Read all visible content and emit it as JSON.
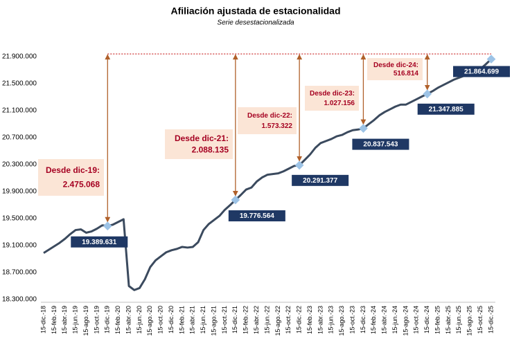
{
  "chart_data": {
    "type": "line",
    "title": "Afiliación ajustada de estacionalidad",
    "subtitle": "Serie desestacionalizada",
    "categories": [
      "15-dic.-18",
      null,
      "15-feb.-19",
      null,
      "15-abr.-19",
      null,
      "15-jun.-19",
      null,
      "15-ago.-19",
      null,
      "15-oct.-19",
      null,
      "15-dic.-19",
      null,
      "15-feb.-20",
      null,
      "15-abr.-20",
      null,
      "15-jun.-20",
      null,
      "15-ago.-20",
      null,
      "15-oct.-20",
      null,
      "15-dic.-20",
      null,
      "15-feb.-21",
      null,
      "15-abr.-21",
      null,
      "15-jun.-21",
      null,
      "15-ago.-21",
      null,
      "15-oct.-21",
      null,
      "15-dic.-21",
      null,
      "15-feb.-22",
      null,
      "15-abr.-22",
      null,
      "15-jun.-22",
      null,
      "15-ago.-22",
      null,
      "15-oct.-22",
      null,
      "15-dic.-22",
      null,
      "15-feb.-23",
      null,
      "15-abr.-23",
      null,
      "15-jun.-23",
      null,
      "15-ago.-23",
      null,
      "15-oct.-23",
      null,
      "15-dic.-23",
      null,
      "15-feb.-24",
      null,
      "15-abr.-24",
      null,
      "15-jun.-24",
      null,
      "15-ago.-24",
      null,
      "15-oct.-24",
      null,
      "15-dic.-24",
      null,
      "15-feb.-25",
      null,
      "15-abr.-25",
      null,
      "15-jun.-25",
      null,
      "15-ago.-25",
      null,
      "15-oct.-25",
      null,
      "15-dic.-25"
    ],
    "values": [
      18990000,
      19040000,
      19090000,
      19140000,
      19200000,
      19270000,
      19330000,
      19340000,
      19290000,
      19310000,
      19350000,
      19400000,
      19389631,
      19410000,
      19450000,
      19490000,
      18500000,
      18440000,
      18470000,
      18600000,
      18780000,
      18880000,
      18940000,
      19000000,
      19030000,
      19050000,
      19080000,
      19070000,
      19080000,
      19150000,
      19330000,
      19420000,
      19480000,
      19540000,
      19630000,
      19700000,
      19776564,
      19850000,
      19930000,
      19960000,
      20050000,
      20110000,
      20150000,
      20160000,
      20170000,
      20200000,
      20240000,
      20280000,
      20291377,
      20370000,
      20450000,
      20550000,
      20620000,
      20650000,
      20680000,
      20720000,
      20740000,
      20780000,
      20810000,
      20820000,
      20837543,
      20900000,
      20960000,
      21030000,
      21080000,
      21120000,
      21160000,
      21190000,
      21190000,
      21230000,
      21270000,
      21310000,
      21347885,
      21390000,
      21440000,
      21480000,
      21520000,
      21560000,
      21590000,
      21620000,
      21650000,
      21670000,
      21720000,
      21790000,
      21864699
    ],
    "value_labels": [
      null,
      null,
      null,
      null,
      null,
      null,
      null,
      null,
      null,
      null,
      null,
      null,
      "19.389.631",
      null,
      null,
      null,
      null,
      null,
      null,
      null,
      null,
      null,
      null,
      null,
      null,
      null,
      null,
      null,
      null,
      null,
      null,
      null,
      null,
      null,
      null,
      null,
      "19.776.564",
      null,
      null,
      null,
      null,
      null,
      null,
      null,
      null,
      null,
      null,
      null,
      "20.291.377",
      null,
      null,
      null,
      null,
      null,
      null,
      null,
      null,
      null,
      null,
      null,
      "20.837.543",
      null,
      null,
      null,
      null,
      null,
      null,
      null,
      null,
      null,
      null,
      null,
      "21.347.885",
      null,
      null,
      null,
      null,
      null,
      null,
      null,
      null,
      null,
      null,
      null,
      "21.864.699"
    ],
    "color": "#3b4a5e",
    "marker_color": "#9dc3e6",
    "label_color": "#1f3864",
    "arrow_color": "#b0602a",
    "ylim": [
      18300000,
      21900000
    ],
    "yticks": [
      {
        "value": 18300000,
        "label": "18.300.000"
      },
      {
        "value": 18700000,
        "label": "18.700.000"
      },
      {
        "value": 19100000,
        "label": "19.100.000"
      },
      {
        "value": 19500000,
        "label": "19.500.000"
      },
      {
        "value": 19900000,
        "label": "19.900.000"
      },
      {
        "value": 20300000,
        "label": "20.300.000"
      },
      {
        "value": 20700000,
        "label": "20.700.000"
      },
      {
        "value": 21100000,
        "label": "21.100.000"
      },
      {
        "value": 21500000,
        "label": "21.500.000"
      },
      {
        "value": 21900000,
        "label": "21.900.000"
      }
    ],
    "grid": false,
    "annotations": [
      {
        "text": "Desde dic-19:",
        "amount": "2.475.068"
      },
      {
        "text": "Desde dic-21:",
        "amount": "2.088.135"
      },
      {
        "text": "Desde dic-22:",
        "amount": "1.573.322"
      },
      {
        "text": "Desde dic-23:",
        "amount": "1.027.156"
      },
      {
        "text": "Desde dic-24:",
        "amount": "516.814"
      }
    ]
  }
}
